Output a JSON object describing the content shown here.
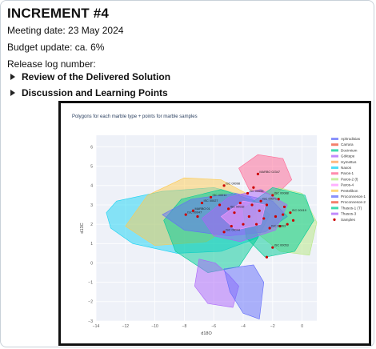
{
  "header": {
    "title": "INCREMENT #4",
    "meeting": "Meeting date: 23 May 2024",
    "budget": "Budget update: ca. 6%",
    "release": "Release log number:"
  },
  "sections": [
    {
      "label": "Review of the Delivered Solution"
    },
    {
      "label": "Discussion and Learning Points"
    }
  ],
  "figure": {
    "title": "Polygons for each marble type + points for marble samples"
  },
  "chart_data": {
    "type": "scatter",
    "title": "Polygons for each marble type + points for marble samples",
    "xlabel": "d18O",
    "ylabel": "d13C",
    "xlim": [
      -14,
      1
    ],
    "ylim": [
      -3,
      6.6
    ],
    "xticks": [
      -14,
      -12,
      -10,
      -8,
      -6,
      -4,
      -2,
      0
    ],
    "yticks": [
      -3,
      -2,
      -1,
      0,
      1,
      2,
      3,
      4,
      5,
      6
    ],
    "grid": true,
    "legend_position": "right",
    "series": [
      {
        "name": "Aphrodisias",
        "color": "#636efa"
      },
      {
        "name": "Carrara",
        "color": "#ef553b"
      },
      {
        "name": "Docimium",
        "color": "#00cc96"
      },
      {
        "name": "Göktepe",
        "color": "#ab63fa"
      },
      {
        "name": "Hymettus",
        "color": "#ffa15a"
      },
      {
        "name": "Naxos",
        "color": "#19d3f3"
      },
      {
        "name": "Paros-1",
        "color": "#ff6692"
      },
      {
        "name": "Paros-2 (l)",
        "color": "#b6e880"
      },
      {
        "name": "Paros-4",
        "color": "#ff97ff"
      },
      {
        "name": "Pentelikon",
        "color": "#fecb52"
      },
      {
        "name": "Proconnesos-1",
        "color": "#636efa"
      },
      {
        "name": "Proconnesos-2",
        "color": "#ef553b"
      },
      {
        "name": "Thasos-1 (T)",
        "color": "#00cc96"
      },
      {
        "name": "Thasos-3",
        "color": "#ab63fa"
      },
      {
        "name": "Samples",
        "color": "#cc0000"
      }
    ],
    "samples": [
      {
        "x": -3.0,
        "y": 4.6,
        "label": "MARBO 02347"
      },
      {
        "x": -5.3,
        "y": 4.0,
        "label": "ISC 00098"
      },
      {
        "x": -6.2,
        "y": 3.4,
        "label": "ISC 00011"
      },
      {
        "x": -6.8,
        "y": 3.1,
        "label": "ISC 00027"
      },
      {
        "x": -7.4,
        "y": 2.7,
        "label": "MARBO 01"
      },
      {
        "x": -7.9,
        "y": 2.5,
        "label": "ISC 00047"
      },
      {
        "x": -7.1,
        "y": 2.4,
        "label": ""
      },
      {
        "x": -5.6,
        "y": 3.0,
        "label": ""
      },
      {
        "x": -5.0,
        "y": 2.8,
        "label": "ISC 00032"
      },
      {
        "x": -4.6,
        "y": 2.6,
        "label": ""
      },
      {
        "x": -4.2,
        "y": 3.1,
        "label": ""
      },
      {
        "x": -3.7,
        "y": 3.6,
        "label": "ISC 00056"
      },
      {
        "x": -3.3,
        "y": 3.9,
        "label": ""
      },
      {
        "x": -2.8,
        "y": 3.2,
        "label": "ISC 00071"
      },
      {
        "x": -2.4,
        "y": 3.0,
        "label": ""
      },
      {
        "x": -2.0,
        "y": 3.5,
        "label": "ISC 00088"
      },
      {
        "x": -1.6,
        "y": 3.3,
        "label": ""
      },
      {
        "x": -1.2,
        "y": 2.9,
        "label": ""
      },
      {
        "x": -0.8,
        "y": 2.6,
        "label": "ISC 00019"
      },
      {
        "x": -0.6,
        "y": 2.2,
        "label": ""
      },
      {
        "x": -1.0,
        "y": 2.0,
        "label": ""
      },
      {
        "x": -1.5,
        "y": 1.9,
        "label": ""
      },
      {
        "x": -2.2,
        "y": 1.8,
        "label": "ISC 00063"
      },
      {
        "x": -2.6,
        "y": 2.3,
        "label": ""
      },
      {
        "x": -3.1,
        "y": 2.0,
        "label": ""
      },
      {
        "x": -3.6,
        "y": 2.4,
        "label": ""
      },
      {
        "x": -4.0,
        "y": 2.0,
        "label": ""
      },
      {
        "x": -4.8,
        "y": 1.9,
        "label": ""
      },
      {
        "x": -5.3,
        "y": 1.6,
        "label": "ISC 00044"
      },
      {
        "x": -1.8,
        "y": 2.4,
        "label": ""
      },
      {
        "x": -1.3,
        "y": 2.5,
        "label": ""
      },
      {
        "x": -2.9,
        "y": 2.7,
        "label": ""
      },
      {
        "x": -3.4,
        "y": 3.0,
        "label": ""
      },
      {
        "x": -2.0,
        "y": 0.8,
        "label": "ISC 00053"
      },
      {
        "x": -2.4,
        "y": 0.3,
        "label": ""
      }
    ]
  }
}
